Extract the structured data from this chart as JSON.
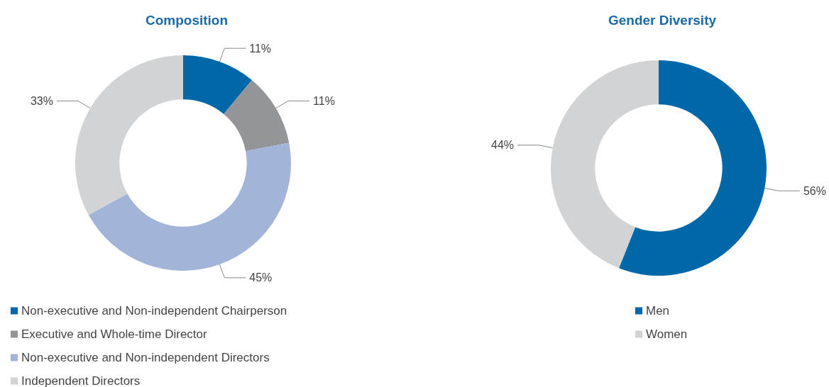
{
  "chart_data": [
    {
      "type": "donut",
      "title": "Composition",
      "categories": [
        "Non-executive and Non-independent Chairperson",
        "Executive and Whole-time Director",
        "Non-executive and Non-independent Directors",
        "Independent Directors"
      ],
      "values": [
        11,
        11,
        45,
        33
      ],
      "colors": [
        "#0068a8",
        "#939598",
        "#a2b4d8",
        "#d1d3d4"
      ],
      "legend": "bottom",
      "value_labels": [
        "11%",
        "11%",
        "45%",
        "33%"
      ]
    },
    {
      "type": "donut",
      "title": "Gender Diversity",
      "categories": [
        "Men",
        "Women"
      ],
      "values": [
        56,
        44
      ],
      "colors": [
        "#0068a8",
        "#d1d3d4"
      ],
      "legend": "bottom",
      "value_labels": [
        "56%",
        "44%"
      ]
    }
  ]
}
